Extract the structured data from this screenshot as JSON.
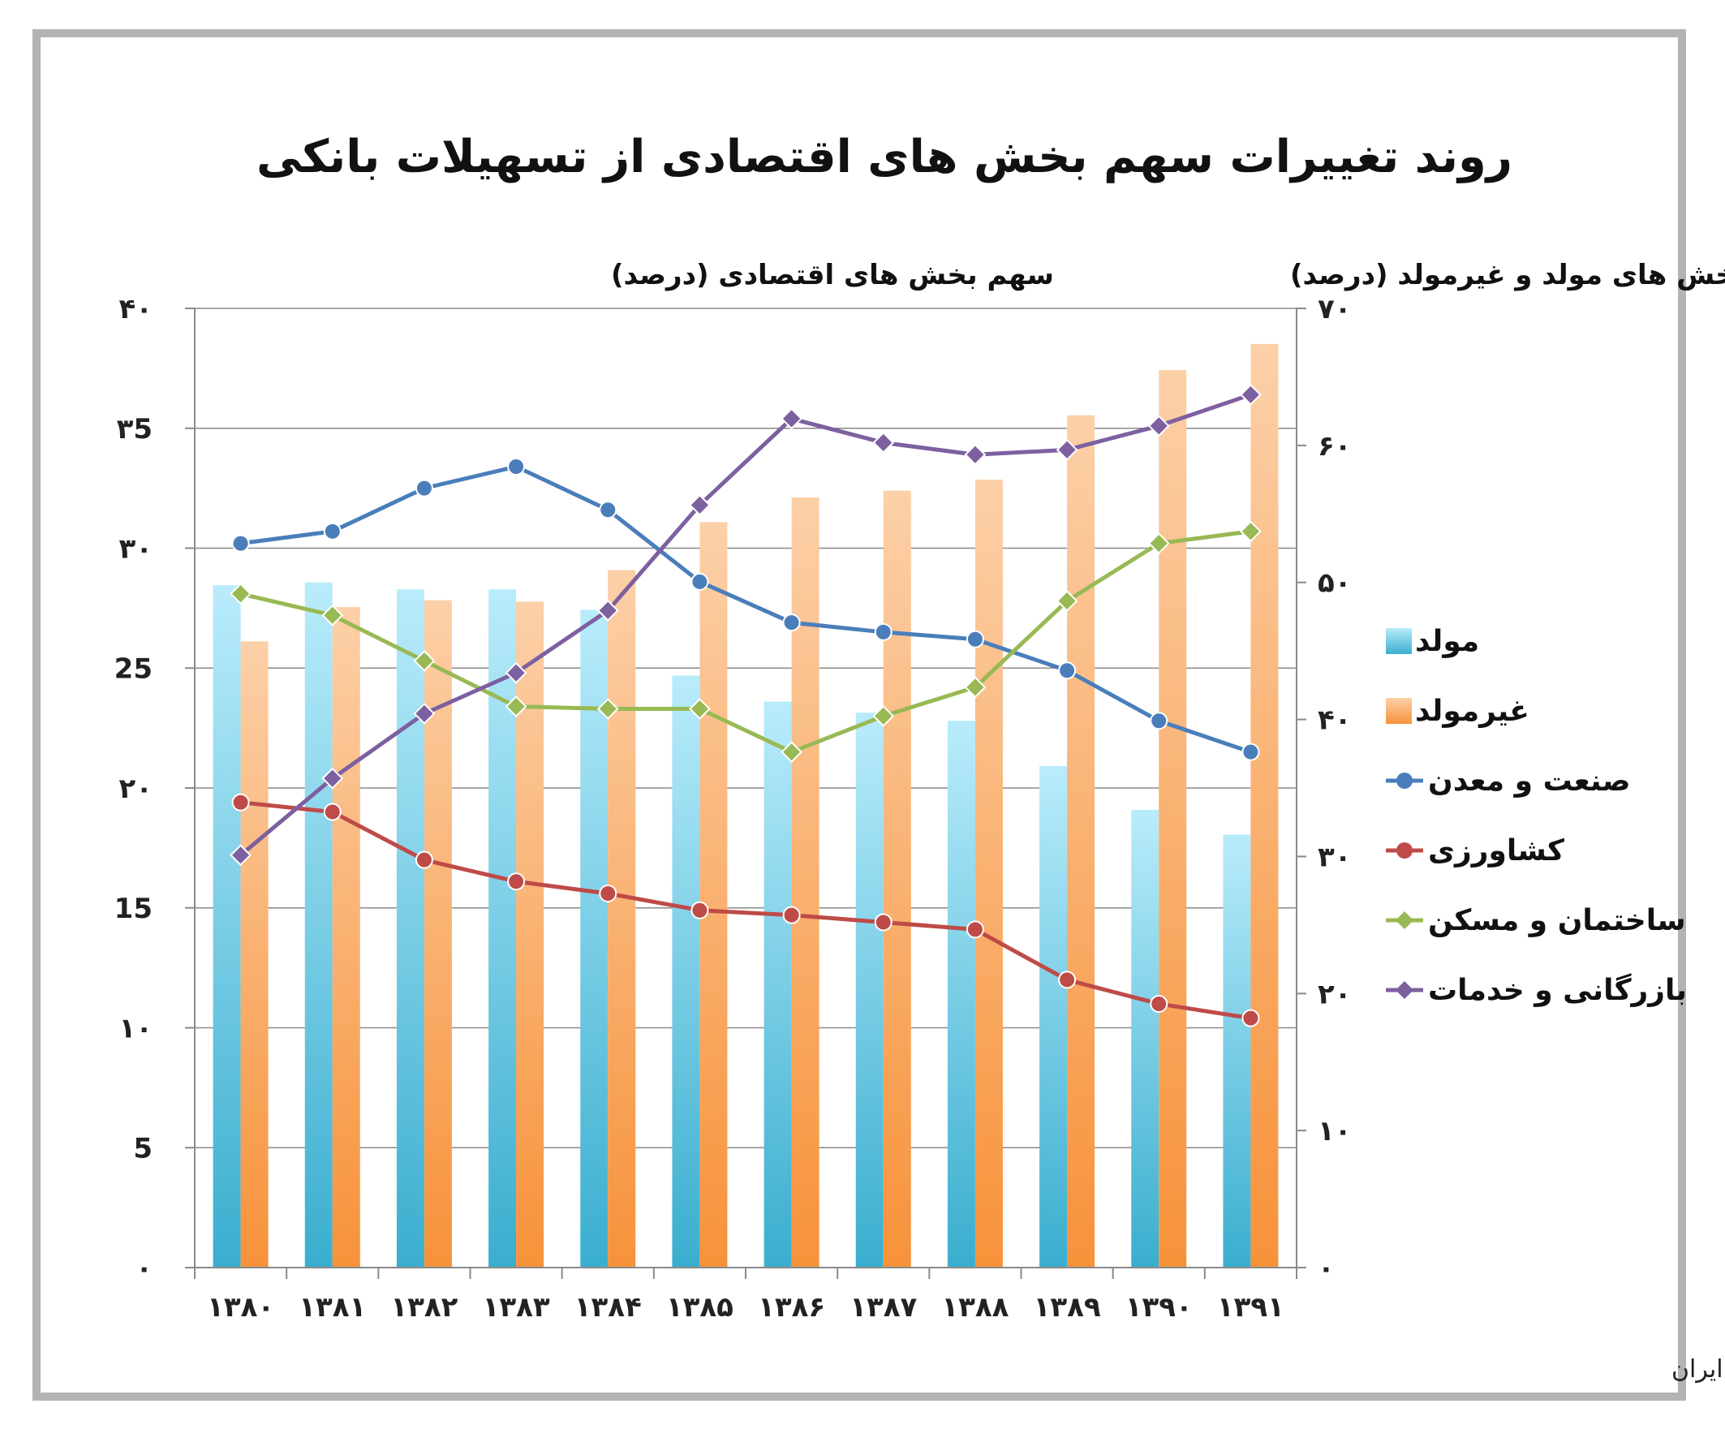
{
  "chart_data": {
    "type": "bar",
    "title": "روند تغییرات سهم بخش های اقتصادی از تسهیلات بانکی",
    "left_axis_title": "سهم بخش های اقتصادی (درصد)",
    "right_axis_title": "سهم بخش های مولد و غیرمولد (درصد)",
    "categories": [
      "۱۳۸۰",
      "۱۳۸۱",
      "۱۳۸۲",
      "۱۳۸۳",
      "۱۳۸۴",
      "۱۳۸۵",
      "۱۳۸۶",
      "۱۳۸۷",
      "۱۳۸۸",
      "۱۳۸۹",
      "۱۳۹۰",
      "۱۳۹۱"
    ],
    "left_ticks": [
      "۰",
      "5",
      "۱۰",
      "15",
      "۲۰",
      "25",
      "۳۰",
      "۳5",
      "۴۰"
    ],
    "right_ticks": [
      "۰",
      "۱۰",
      "۲۰",
      "۳۰",
      "۴۰",
      "۵۰",
      "۶۰",
      "۷۰"
    ],
    "ylim_left": [
      0,
      40
    ],
    "ylim_right": [
      0,
      70
    ],
    "bar_series": [
      {
        "name": "مولد",
        "axis": "right",
        "color_top": "#b9ecfb",
        "color_bottom": "#3aaecf",
        "values": [
          49.8,
          50.0,
          49.5,
          49.5,
          48.0,
          43.2,
          41.3,
          40.5,
          39.9,
          36.6,
          33.4,
          31.6
        ]
      },
      {
        "name": "غیرمولد",
        "axis": "right",
        "color_top": "#fcd0a8",
        "color_bottom": "#f7923a",
        "values": [
          45.7,
          48.2,
          48.7,
          48.6,
          50.9,
          54.4,
          56.2,
          56.7,
          57.5,
          62.2,
          65.5,
          67.4
        ]
      }
    ],
    "line_series": [
      {
        "name": "صنعت و معدن",
        "axis": "left",
        "color": "#4a7ebb",
        "marker": "circle",
        "values": [
          30.2,
          30.7,
          32.5,
          33.4,
          31.6,
          28.6,
          26.9,
          26.5,
          26.2,
          24.9,
          22.8,
          21.5
        ]
      },
      {
        "name": "کشاورزی",
        "axis": "left",
        "color": "#be4b48",
        "marker": "circle",
        "values": [
          19.4,
          19.0,
          17.0,
          16.1,
          15.6,
          14.9,
          14.7,
          14.4,
          14.1,
          12.0,
          11.0,
          10.4
        ]
      },
      {
        "name": "ساختمان و مسکن",
        "axis": "left",
        "color": "#98b954",
        "marker": "diamond",
        "values": [
          28.1,
          27.2,
          25.3,
          23.4,
          23.3,
          23.3,
          21.5,
          23.0,
          24.2,
          27.8,
          30.2,
          30.7
        ]
      },
      {
        "name": "بازرگانی و خدمات",
        "axis": "left",
        "color": "#7d60a0",
        "marker": "diamond",
        "values": [
          17.2,
          20.4,
          23.1,
          24.8,
          27.4,
          31.8,
          35.4,
          34.4,
          33.9,
          34.1,
          35.1,
          36.4
        ]
      }
    ],
    "grid": true,
    "legend_position": "right"
  },
  "source_text": "تحلیل و استنتاج: احسان سلطانی بر اساس داده های بانک مرکزی ایران"
}
